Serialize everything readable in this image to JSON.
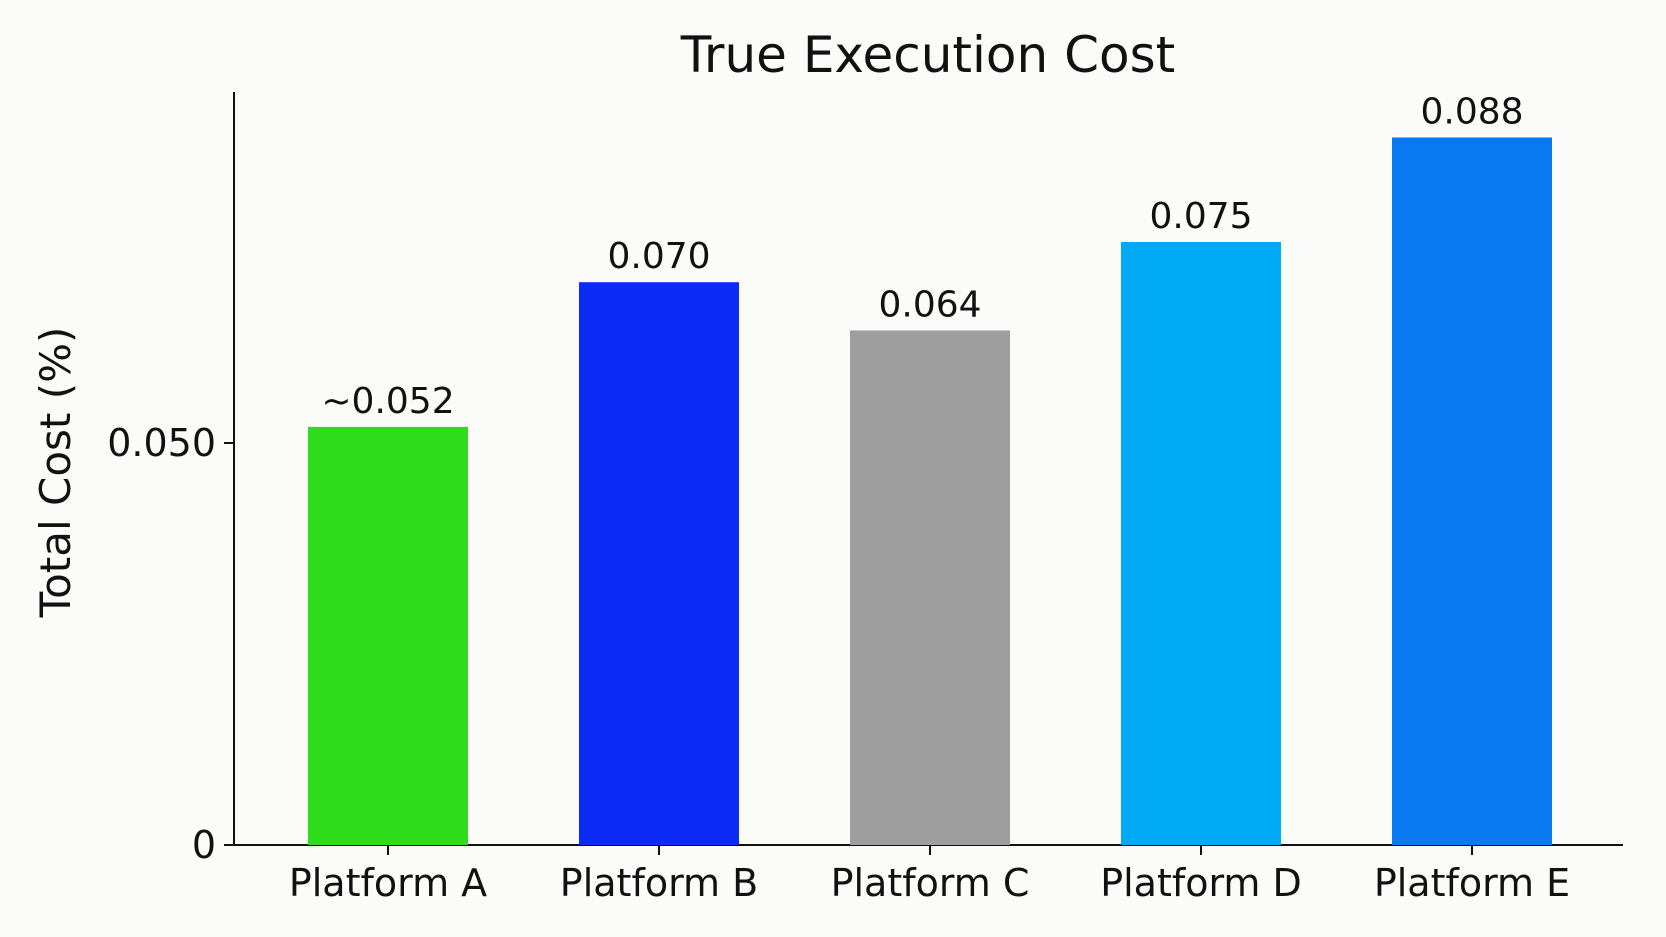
{
  "chart_data": {
    "type": "bar",
    "title": "True Execution Cost",
    "xlabel": "",
    "ylabel": "Total Cost (%)",
    "categories": [
      "Platform A",
      "Platform B",
      "Platform C",
      "Platform D",
      "Platform E"
    ],
    "values": [
      0.052,
      0.07,
      0.064,
      0.075,
      0.088
    ],
    "value_labels": [
      "~0.052",
      "0.070",
      "0.064",
      "0.075",
      "0.088"
    ],
    "colors": [
      "#2fdc1a",
      "#0c2cf5",
      "#9e9e9e",
      "#00aaf5",
      "#0a78f0"
    ],
    "y_ticks": [
      {
        "value": 0,
        "label": "0"
      },
      {
        "value": 0.05,
        "label": "0.050"
      }
    ],
    "grid": false,
    "legend": "none"
  }
}
